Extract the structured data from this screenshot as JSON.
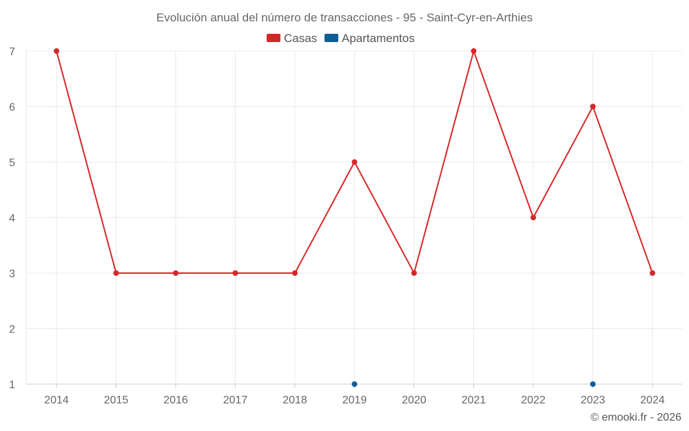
{
  "chart_data": {
    "type": "line",
    "title": "Evolución anual del número de transacciones - 95 - Saint-Cyr-en-Arthies",
    "categories": [
      "2014",
      "2015",
      "2016",
      "2017",
      "2018",
      "2019",
      "2020",
      "2021",
      "2022",
      "2023",
      "2024"
    ],
    "series": [
      {
        "name": "Casas",
        "color": "#d62728",
        "values": [
          7,
          3,
          3,
          3,
          3,
          5,
          3,
          7,
          4,
          6,
          3
        ]
      },
      {
        "name": "Apartamentos",
        "color": "#0f5e96",
        "values": [
          null,
          null,
          null,
          null,
          null,
          1,
          null,
          null,
          null,
          1,
          null
        ]
      }
    ],
    "yticks": [
      1,
      2,
      3,
      4,
      5,
      6,
      7
    ],
    "ylim": [
      1,
      7
    ],
    "xlabel": "",
    "ylabel": "",
    "grid": true,
    "legend_position": "top-center"
  },
  "footer": {
    "copyright": "© emooki.fr - 2026"
  }
}
